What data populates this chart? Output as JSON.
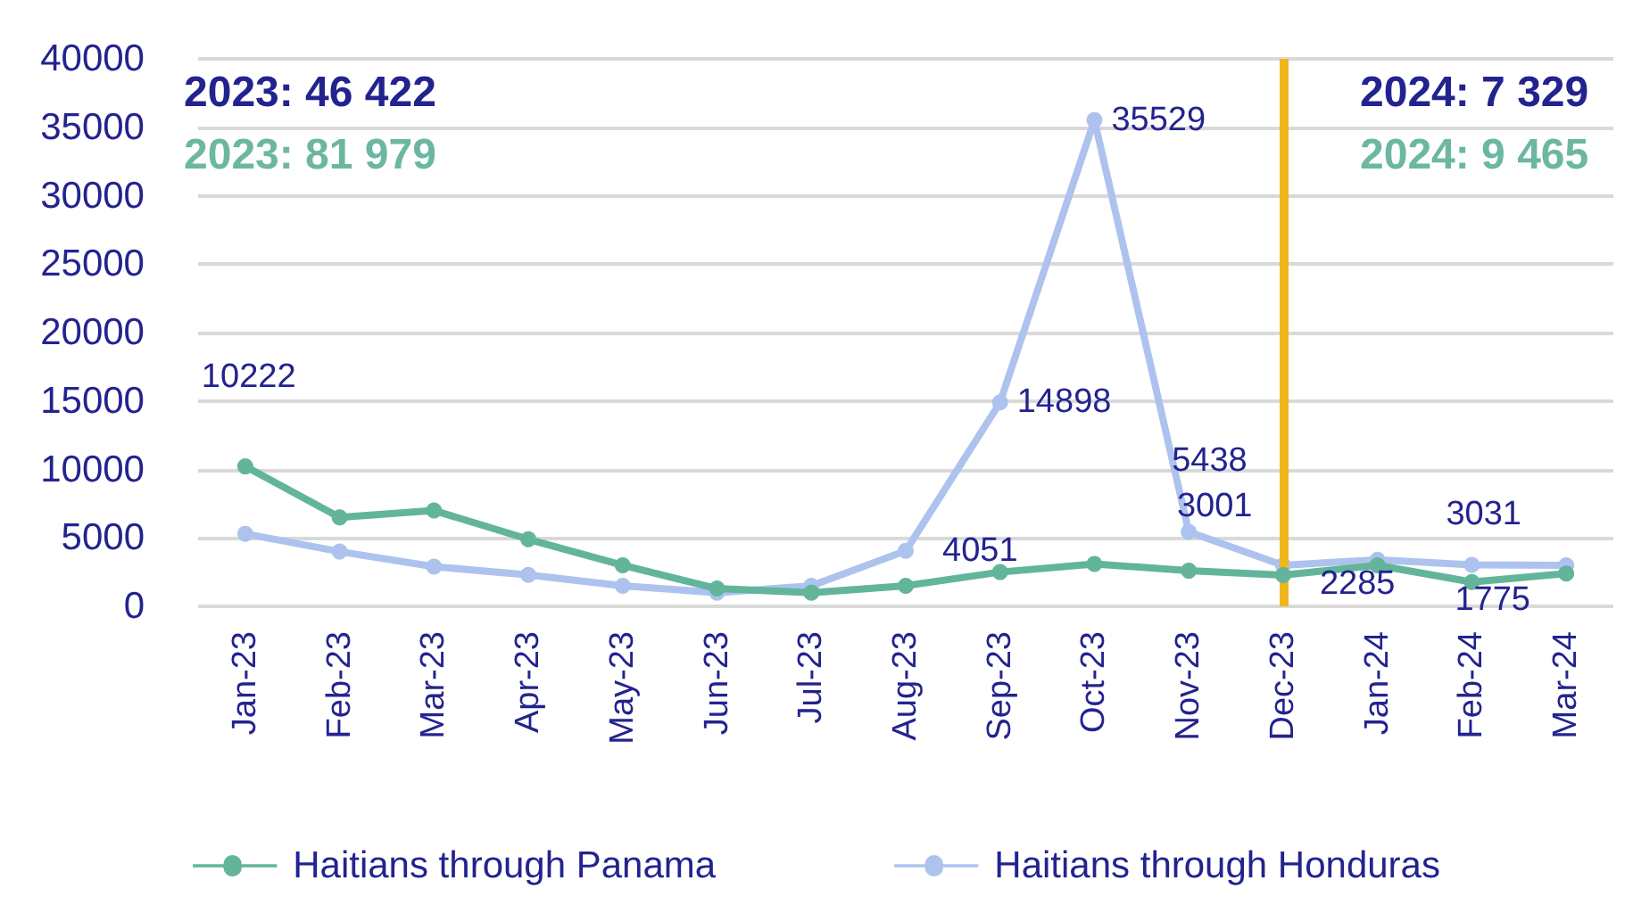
{
  "chart_data": {
    "type": "line",
    "categories": [
      "Jan-23",
      "Feb-23",
      "Mar-23",
      "Apr-23",
      "May-23",
      "Jun-23",
      "Jul-23",
      "Aug-23",
      "Sep-23",
      "Oct-23",
      "Nov-23",
      "Dec-23",
      "Jan-24",
      "Feb-24",
      "Mar-24"
    ],
    "series": [
      {
        "name": "Haitians through Panama",
        "color": "#62b59a",
        "values": [
          10222,
          6500,
          7000,
          4900,
          3000,
          1300,
          1000,
          1500,
          2500,
          3100,
          2600,
          2285,
          3000,
          1775,
          2400
        ],
        "value_labels": [
          "10222",
          null,
          null,
          null,
          null,
          null,
          null,
          null,
          null,
          null,
          null,
          "2285",
          null,
          "1775",
          null
        ]
      },
      {
        "name": "Haitians through Honduras",
        "color": "#adc3ee",
        "values": [
          5300,
          4000,
          2900,
          2300,
          1500,
          1000,
          1500,
          4051,
          14898,
          35529,
          5438,
          3001,
          3400,
          3031,
          3000
        ],
        "value_labels": [
          null,
          null,
          null,
          null,
          null,
          null,
          null,
          "4051",
          "14898",
          "35529",
          "5438",
          "3001",
          null,
          "3031",
          null
        ]
      }
    ],
    "ylim": [
      0,
      40000
    ],
    "yticks": [
      0,
      5000,
      10000,
      15000,
      20000,
      25000,
      30000,
      35000,
      40000
    ],
    "grid": "y",
    "legend": "bottom",
    "marker": "circle",
    "ref_lines": [
      {
        "axis": "x",
        "value": "Dec-23",
        "color": "#f0b71c"
      }
    ],
    "annotations": [
      "2023: 46 422",
      "2023: 81 979",
      "2024: 7 329",
      "2024: 9 465"
    ]
  }
}
